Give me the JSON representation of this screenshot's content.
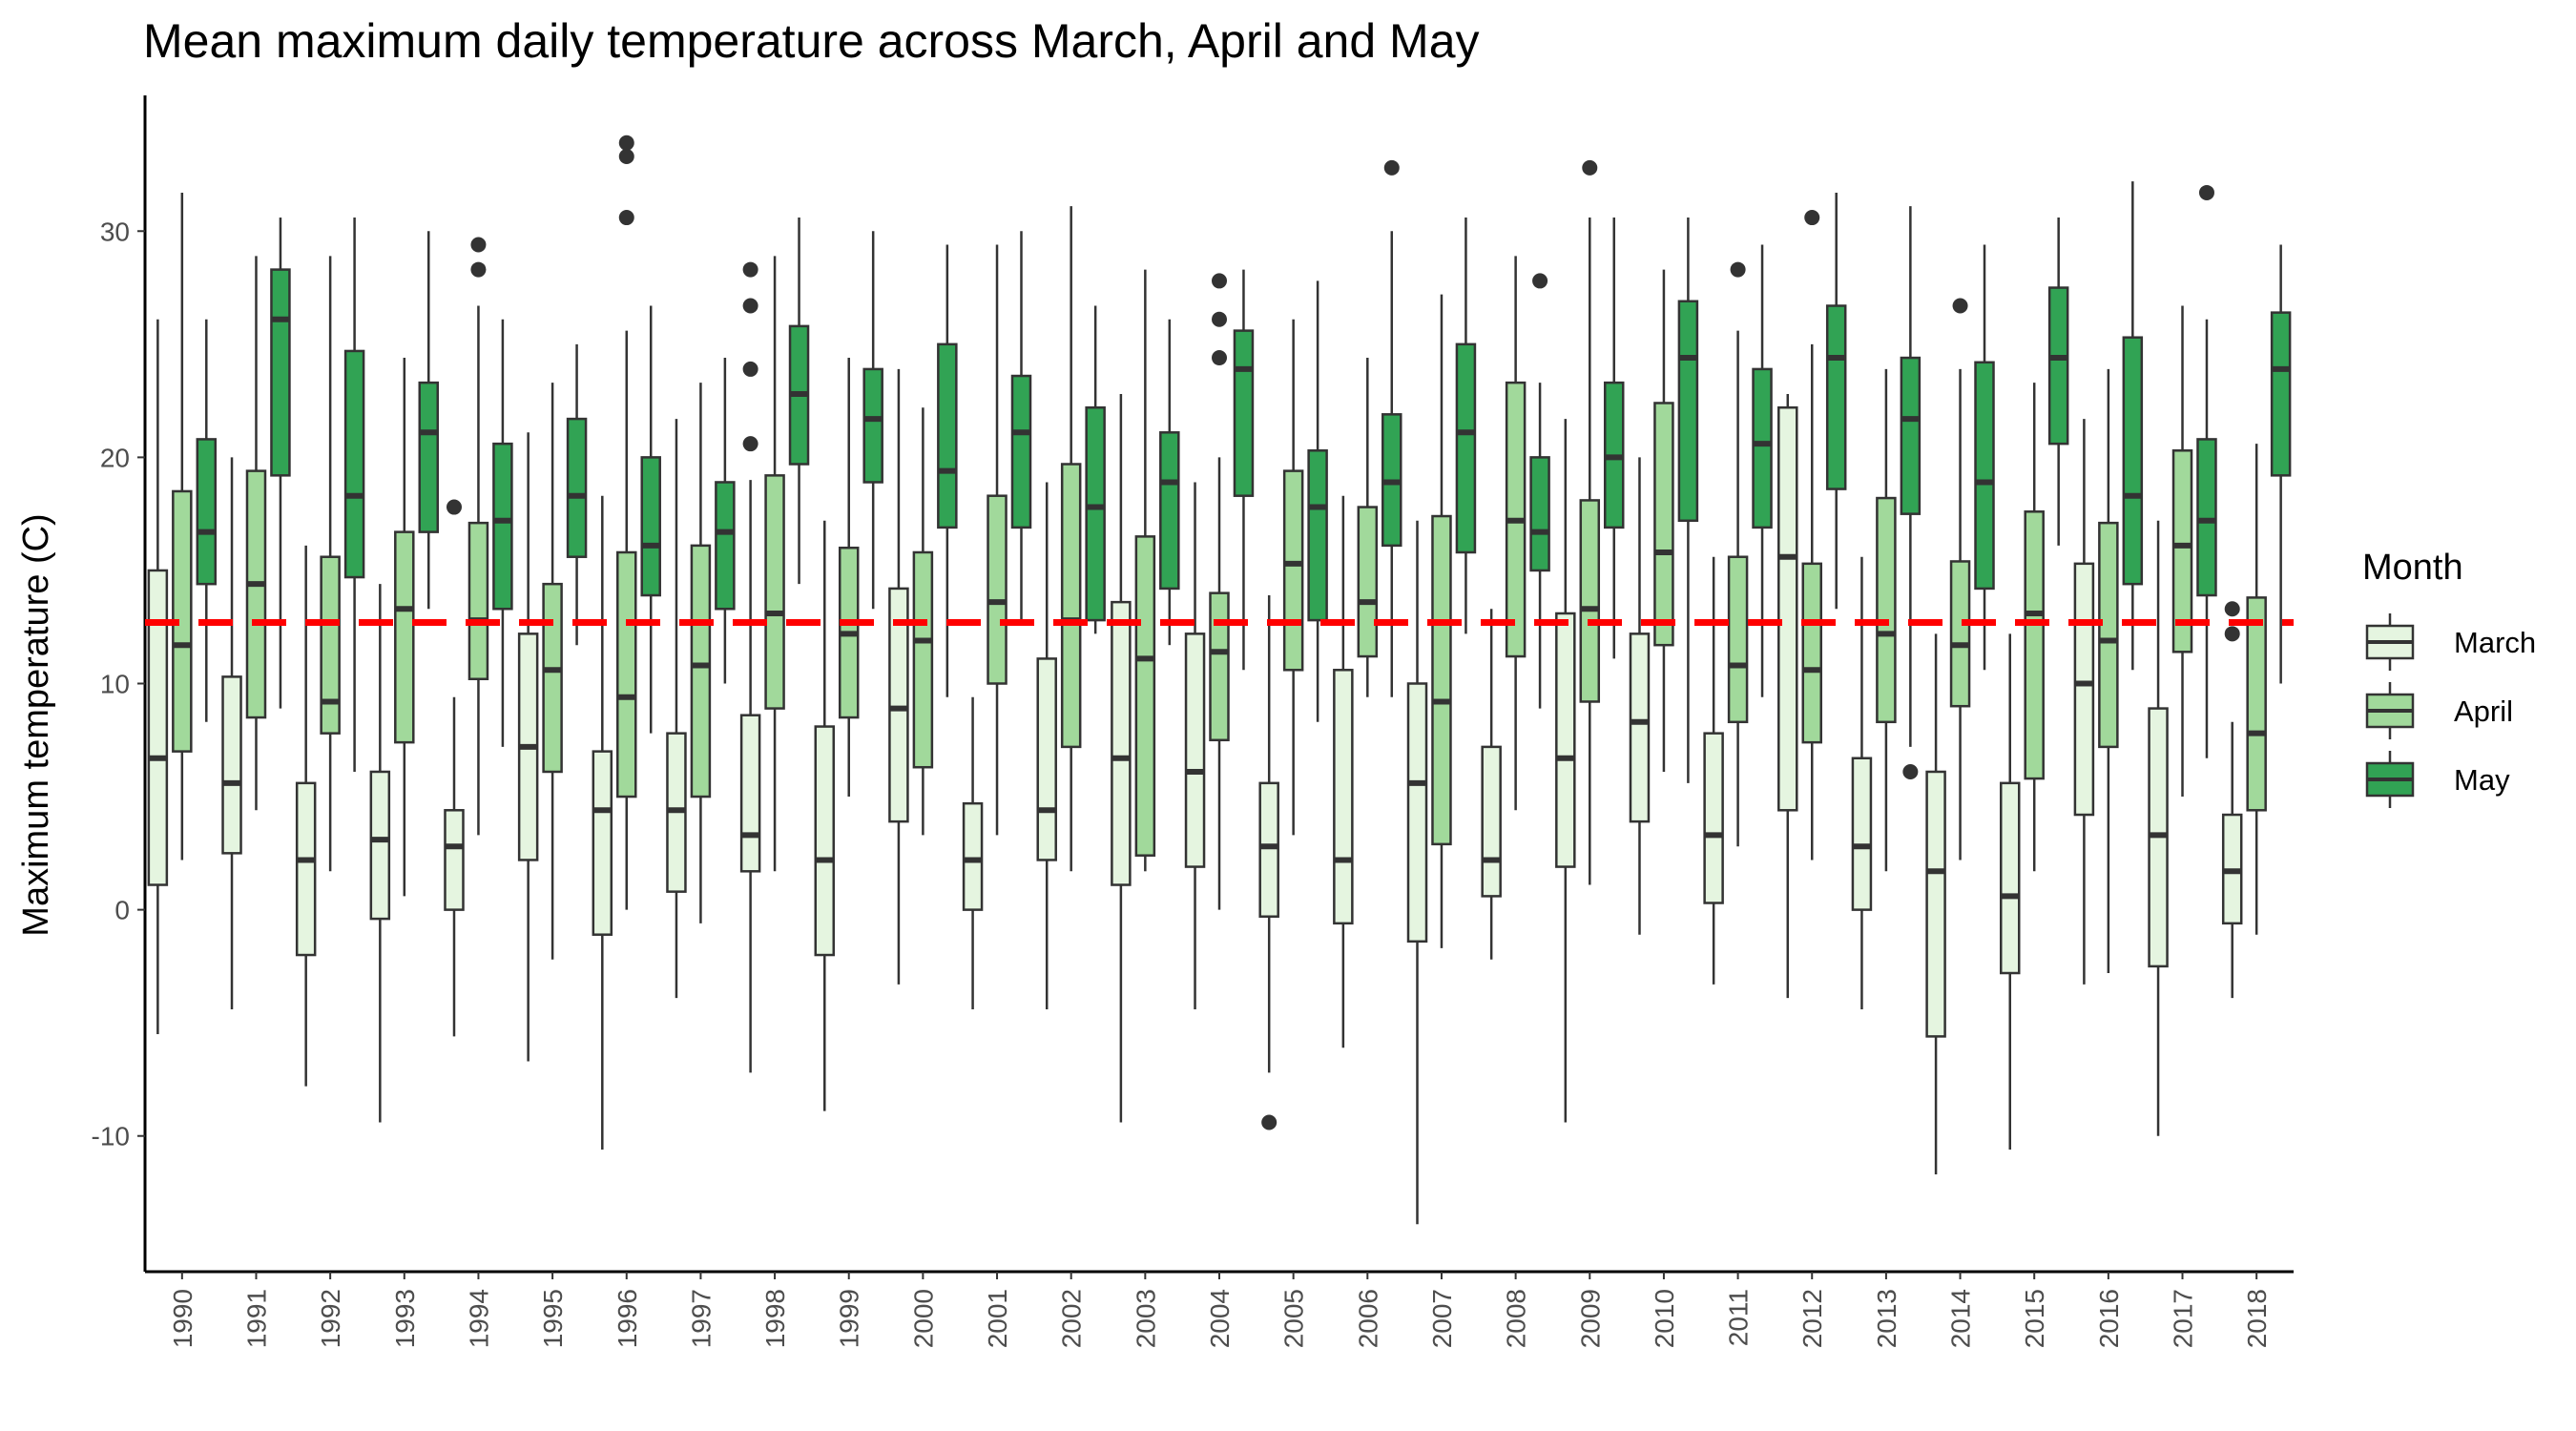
{
  "chart_data": {
    "type": "boxplot",
    "title": "Mean maximum daily temperature across March, April and May",
    "ylabel": "Maximum temperature (C)",
    "xlabel": "",
    "ylim": [
      -16,
      36
    ],
    "yticks": [
      -10,
      0,
      10,
      20,
      30
    ],
    "ytick_labels": [
      "-10",
      "0",
      "10",
      "20",
      "30"
    ],
    "reference_line": {
      "y": 12.7,
      "color": "#ff0000",
      "style": "dashed"
    },
    "legend": {
      "title": "Month",
      "position": "right",
      "entries": [
        "March",
        "April",
        "May"
      ]
    },
    "grid": false,
    "series": [
      {
        "name": "March",
        "color": "#e5f5e0"
      },
      {
        "name": "April",
        "color": "#a1d99b"
      },
      {
        "name": "May",
        "color": "#31a354"
      }
    ],
    "categories": [
      "1990",
      "1991",
      "1992",
      "1993",
      "1994",
      "1995",
      "1996",
      "1997",
      "1998",
      "1999",
      "2000",
      "2001",
      "2002",
      "2003",
      "2004",
      "2005",
      "2006",
      "2007",
      "2008",
      "2009",
      "2010",
      "2011",
      "2012",
      "2013",
      "2014",
      "2015",
      "2016",
      "2017",
      "2018"
    ],
    "boxes": [
      {
        "year": "1990",
        "march": {
          "min": -5.5,
          "q1": 1.1,
          "median": 6.7,
          "q3": 15,
          "max": 26.1,
          "outliers": []
        },
        "april": {
          "min": 2.2,
          "q1": 7,
          "median": 11.7,
          "q3": 18.5,
          "max": 31.7,
          "outliers": []
        },
        "may": {
          "min": 8.3,
          "q1": 14.4,
          "median": 16.7,
          "q3": 20.8,
          "max": 26.1,
          "outliers": []
        }
      },
      {
        "year": "1991",
        "march": {
          "min": -4.4,
          "q1": 2.5,
          "median": 5.6,
          "q3": 10.3,
          "max": 20,
          "outliers": []
        },
        "april": {
          "min": 4.4,
          "q1": 8.5,
          "median": 14.4,
          "q3": 19.4,
          "max": 28.9,
          "outliers": []
        },
        "may": {
          "min": 8.9,
          "q1": 19.2,
          "median": 26.1,
          "q3": 28.3,
          "max": 30.6,
          "outliers": []
        }
      },
      {
        "year": "1992",
        "march": {
          "min": -7.8,
          "q1": -2,
          "median": 2.2,
          "q3": 5.6,
          "max": 16.1,
          "outliers": []
        },
        "april": {
          "min": 1.7,
          "q1": 7.8,
          "median": 9.2,
          "q3": 15.6,
          "max": 28.9,
          "outliers": []
        },
        "may": {
          "min": 6.1,
          "q1": 14.7,
          "median": 18.3,
          "q3": 24.7,
          "max": 30.6,
          "outliers": []
        }
      },
      {
        "year": "1993",
        "march": {
          "min": -9.4,
          "q1": -0.4,
          "median": 3.1,
          "q3": 6.1,
          "max": 14.4,
          "outliers": []
        },
        "april": {
          "min": 0.6,
          "q1": 7.4,
          "median": 13.3,
          "q3": 16.7,
          "max": 24.4,
          "outliers": []
        },
        "may": {
          "min": 13.3,
          "q1": 16.7,
          "median": 21.1,
          "q3": 23.3,
          "max": 30,
          "outliers": []
        }
      },
      {
        "year": "1994",
        "march": {
          "min": -5.6,
          "q1": 0,
          "median": 2.8,
          "q3": 4.4,
          "max": 9.4,
          "outliers": [
            17.8
          ]
        },
        "april": {
          "min": 3.3,
          "q1": 10.2,
          "median": 12.8,
          "q3": 17.1,
          "max": 26.7,
          "outliers": [
            28.3,
            29.4
          ]
        },
        "may": {
          "min": 7.2,
          "q1": 13.3,
          "median": 17.2,
          "q3": 20.6,
          "max": 26.1,
          "outliers": []
        }
      },
      {
        "year": "1995",
        "march": {
          "min": -6.7,
          "q1": 2.2,
          "median": 7.2,
          "q3": 12.2,
          "max": 21.1,
          "outliers": []
        },
        "april": {
          "min": -2.2,
          "q1": 6.1,
          "median": 10.6,
          "q3": 14.4,
          "max": 23.3,
          "outliers": []
        },
        "may": {
          "min": 11.7,
          "q1": 15.6,
          "median": 18.3,
          "q3": 21.7,
          "max": 25,
          "outliers": []
        }
      },
      {
        "year": "1996",
        "march": {
          "min": -10.6,
          "q1": -1.1,
          "median": 4.4,
          "q3": 7,
          "max": 18.3,
          "outliers": []
        },
        "april": {
          "min": 0,
          "q1": 5,
          "median": 9.4,
          "q3": 15.8,
          "max": 25.6,
          "outliers": [
            30.6,
            33.3,
            33.9
          ]
        },
        "may": {
          "min": 7.8,
          "q1": 13.9,
          "median": 16.1,
          "q3": 20,
          "max": 26.7,
          "outliers": []
        }
      },
      {
        "year": "1997",
        "march": {
          "min": -3.9,
          "q1": 0.8,
          "median": 4.4,
          "q3": 7.8,
          "max": 21.7,
          "outliers": []
        },
        "april": {
          "min": -0.6,
          "q1": 5,
          "median": 10.8,
          "q3": 16.1,
          "max": 23.3,
          "outliers": []
        },
        "may": {
          "min": 10,
          "q1": 13.3,
          "median": 16.7,
          "q3": 18.9,
          "max": 24.4,
          "outliers": []
        }
      },
      {
        "year": "1998",
        "march": {
          "min": -7.2,
          "q1": 1.7,
          "median": 3.3,
          "q3": 8.6,
          "max": 19,
          "outliers": [
            20.6,
            23.9,
            26.7,
            28.3
          ]
        },
        "april": {
          "min": 1.7,
          "q1": 8.9,
          "median": 13.1,
          "q3": 19.2,
          "max": 28.9,
          "outliers": []
        },
        "may": {
          "min": 14.4,
          "q1": 19.7,
          "median": 22.8,
          "q3": 25.8,
          "max": 30.6,
          "outliers": []
        }
      },
      {
        "year": "1999",
        "march": {
          "min": -8.9,
          "q1": -2,
          "median": 2.2,
          "q3": 8.1,
          "max": 17.2,
          "outliers": []
        },
        "april": {
          "min": 5,
          "q1": 8.5,
          "median": 12.2,
          "q3": 16,
          "max": 24.4,
          "outliers": []
        },
        "may": {
          "min": 13.3,
          "q1": 18.9,
          "median": 21.7,
          "q3": 23.9,
          "max": 30,
          "outliers": []
        }
      },
      {
        "year": "2000",
        "march": {
          "min": -3.3,
          "q1": 3.9,
          "median": 8.9,
          "q3": 14.2,
          "max": 23.9,
          "outliers": []
        },
        "april": {
          "min": 3.3,
          "q1": 6.3,
          "median": 11.9,
          "q3": 15.8,
          "max": 22.2,
          "outliers": []
        },
        "may": {
          "min": 9.4,
          "q1": 16.9,
          "median": 19.4,
          "q3": 25,
          "max": 29.4,
          "outliers": []
        }
      },
      {
        "year": "2001",
        "march": {
          "min": -4.4,
          "q1": 0,
          "median": 2.2,
          "q3": 4.7,
          "max": 9.4,
          "outliers": []
        },
        "april": {
          "min": 3.3,
          "q1": 10,
          "median": 13.6,
          "q3": 18.3,
          "max": 29.4,
          "outliers": []
        },
        "may": {
          "min": 12.8,
          "q1": 16.9,
          "median": 21.1,
          "q3": 23.6,
          "max": 30,
          "outliers": []
        }
      },
      {
        "year": "2002",
        "march": {
          "min": -4.4,
          "q1": 2.2,
          "median": 4.4,
          "q3": 11.1,
          "max": 18.9,
          "outliers": []
        },
        "april": {
          "min": 1.7,
          "q1": 7.2,
          "median": 12.8,
          "q3": 19.7,
          "max": 31.1,
          "outliers": []
        },
        "may": {
          "min": 12.2,
          "q1": 12.8,
          "median": 17.8,
          "q3": 22.2,
          "max": 26.7,
          "outliers": []
        }
      },
      {
        "year": "2003",
        "march": {
          "min": -9.4,
          "q1": 1.1,
          "median": 6.7,
          "q3": 13.6,
          "max": 22.8,
          "outliers": []
        },
        "april": {
          "min": 1.7,
          "q1": 2.4,
          "median": 11.1,
          "q3": 16.5,
          "max": 28.3,
          "outliers": []
        },
        "may": {
          "min": 11.7,
          "q1": 14.2,
          "median": 18.9,
          "q3": 21.1,
          "max": 26.1,
          "outliers": []
        }
      },
      {
        "year": "2004",
        "march": {
          "min": -4.4,
          "q1": 1.9,
          "median": 6.1,
          "q3": 12.2,
          "max": 18.9,
          "outliers": []
        },
        "april": {
          "min": 0,
          "q1": 7.5,
          "median": 11.4,
          "q3": 14,
          "max": 20,
          "outliers": [
            24.4,
            26.1,
            27.8
          ]
        },
        "may": {
          "min": 10.6,
          "q1": 18.3,
          "median": 23.9,
          "q3": 25.6,
          "max": 28.3,
          "outliers": []
        }
      },
      {
        "year": "2005",
        "march": {
          "min": -7.2,
          "q1": -0.3,
          "median": 2.8,
          "q3": 5.6,
          "max": 13.9,
          "outliers": [
            -9.4
          ]
        },
        "april": {
          "min": 3.3,
          "q1": 10.6,
          "median": 15.3,
          "q3": 19.4,
          "max": 26.1,
          "outliers": []
        },
        "may": {
          "min": 8.3,
          "q1": 12.8,
          "median": 17.8,
          "q3": 20.3,
          "max": 27.8,
          "outliers": []
        }
      },
      {
        "year": "2006",
        "march": {
          "min": -6.1,
          "q1": -0.6,
          "median": 2.2,
          "q3": 10.6,
          "max": 18.3,
          "outliers": []
        },
        "april": {
          "min": 9.4,
          "q1": 11.2,
          "median": 13.6,
          "q3": 17.8,
          "max": 24.4,
          "outliers": []
        },
        "may": {
          "min": 9.4,
          "q1": 16.1,
          "median": 18.9,
          "q3": 21.9,
          "max": 30,
          "outliers": [
            32.8
          ]
        }
      },
      {
        "year": "2007",
        "march": {
          "min": -13.9,
          "q1": -1.4,
          "median": 5.6,
          "q3": 10,
          "max": 17.2,
          "outliers": []
        },
        "april": {
          "min": -1.7,
          "q1": 2.9,
          "median": 9.2,
          "q3": 17.4,
          "max": 27.2,
          "outliers": []
        },
        "may": {
          "min": 12.2,
          "q1": 15.8,
          "median": 21.1,
          "q3": 25,
          "max": 30.6,
          "outliers": []
        }
      },
      {
        "year": "2008",
        "march": {
          "min": -2.2,
          "q1": 0.6,
          "median": 2.2,
          "q3": 7.2,
          "max": 13.3,
          "outliers": []
        },
        "april": {
          "min": 4.4,
          "q1": 11.2,
          "median": 17.2,
          "q3": 23.3,
          "max": 28.9,
          "outliers": []
        },
        "may": {
          "min": 8.9,
          "q1": 15,
          "median": 16.7,
          "q3": 20,
          "max": 23.3,
          "outliers": [
            27.8
          ]
        }
      },
      {
        "year": "2009",
        "march": {
          "min": -9.4,
          "q1": 1.9,
          "median": 6.7,
          "q3": 13.1,
          "max": 21.7,
          "outliers": []
        },
        "april": {
          "min": 1.1,
          "q1": 9.2,
          "median": 13.3,
          "q3": 18.1,
          "max": 30.6,
          "outliers": [
            32.8
          ]
        },
        "may": {
          "min": 11.1,
          "q1": 16.9,
          "median": 20,
          "q3": 23.3,
          "max": 30.6,
          "outliers": []
        }
      },
      {
        "year": "2010",
        "march": {
          "min": -1.1,
          "q1": 3.9,
          "median": 8.3,
          "q3": 12.2,
          "max": 20,
          "outliers": []
        },
        "april": {
          "min": 6.1,
          "q1": 11.7,
          "median": 15.8,
          "q3": 22.4,
          "max": 28.3,
          "outliers": []
        },
        "may": {
          "min": 5.6,
          "q1": 17.2,
          "median": 24.4,
          "q3": 26.9,
          "max": 30.6,
          "outliers": []
        }
      },
      {
        "year": "2011",
        "march": {
          "min": -3.3,
          "q1": 0.3,
          "median": 3.3,
          "q3": 7.8,
          "max": 15.6,
          "outliers": []
        },
        "april": {
          "min": 2.8,
          "q1": 8.3,
          "median": 10.8,
          "q3": 15.6,
          "max": 25.6,
          "outliers": [
            28.3
          ]
        },
        "may": {
          "min": 9.4,
          "q1": 16.9,
          "median": 20.6,
          "q3": 23.9,
          "max": 29.4,
          "outliers": []
        }
      },
      {
        "year": "2012",
        "march": {
          "min": -3.9,
          "q1": 4.4,
          "median": 15.6,
          "q3": 22.2,
          "max": 22.8,
          "outliers": []
        },
        "april": {
          "min": 2.2,
          "q1": 7.4,
          "median": 10.6,
          "q3": 15.3,
          "max": 25,
          "outliers": [
            30.6
          ]
        },
        "may": {
          "min": 13.3,
          "q1": 18.6,
          "median": 24.4,
          "q3": 26.7,
          "max": 31.7,
          "outliers": []
        }
      },
      {
        "year": "2013",
        "march": {
          "min": -4.4,
          "q1": 0,
          "median": 2.8,
          "q3": 6.7,
          "max": 15.6,
          "outliers": []
        },
        "april": {
          "min": 1.7,
          "q1": 8.3,
          "median": 12.2,
          "q3": 18.2,
          "max": 23.9,
          "outliers": []
        },
        "may": {
          "min": 7.2,
          "q1": 17.5,
          "median": 21.7,
          "q3": 24.4,
          "max": 31.1,
          "outliers": [
            6.1
          ]
        }
      },
      {
        "year": "2014",
        "march": {
          "min": -11.7,
          "q1": -5.6,
          "median": 1.7,
          "q3": 6.1,
          "max": 12.2,
          "outliers": []
        },
        "april": {
          "min": 2.2,
          "q1": 9,
          "median": 11.7,
          "q3": 15.4,
          "max": 23.9,
          "outliers": [
            26.7
          ]
        },
        "may": {
          "min": 10.6,
          "q1": 14.2,
          "median": 18.9,
          "q3": 24.2,
          "max": 29.4,
          "outliers": []
        }
      },
      {
        "year": "2015",
        "march": {
          "min": -10.6,
          "q1": -2.8,
          "median": 0.6,
          "q3": 5.6,
          "max": 12.2,
          "outliers": []
        },
        "april": {
          "min": 1.7,
          "q1": 5.8,
          "median": 13.1,
          "q3": 17.6,
          "max": 23.3,
          "outliers": []
        },
        "may": {
          "min": 16.1,
          "q1": 20.6,
          "median": 24.4,
          "q3": 27.5,
          "max": 30.6,
          "outliers": []
        }
      },
      {
        "year": "2016",
        "march": {
          "min": -3.3,
          "q1": 4.2,
          "median": 10,
          "q3": 15.3,
          "max": 21.7,
          "outliers": []
        },
        "april": {
          "min": -2.8,
          "q1": 7.2,
          "median": 11.9,
          "q3": 17.1,
          "max": 23.9,
          "outliers": []
        },
        "may": {
          "min": 10.6,
          "q1": 14.4,
          "median": 18.3,
          "q3": 25.3,
          "max": 32.2,
          "outliers": []
        }
      },
      {
        "year": "2017",
        "march": {
          "min": -10,
          "q1": -2.5,
          "median": 3.3,
          "q3": 8.9,
          "max": 17.2,
          "outliers": []
        },
        "april": {
          "min": 5,
          "q1": 11.4,
          "median": 16.1,
          "q3": 20.3,
          "max": 26.7,
          "outliers": []
        },
        "may": {
          "min": 6.7,
          "q1": 13.9,
          "median": 17.2,
          "q3": 20.8,
          "max": 26.1,
          "outliers": [
            31.7
          ]
        }
      },
      {
        "year": "2018",
        "march": {
          "min": -3.9,
          "q1": -0.6,
          "median": 1.7,
          "q3": 4.2,
          "max": 8.3,
          "outliers": [
            12.2,
            13.3
          ]
        },
        "april": {
          "min": -1.1,
          "q1": 4.4,
          "median": 7.8,
          "q3": 13.8,
          "max": 20.6,
          "outliers": []
        },
        "may": {
          "min": 10,
          "q1": 19.2,
          "median": 23.9,
          "q3": 26.4,
          "max": 29.4,
          "outliers": []
        }
      }
    ]
  }
}
